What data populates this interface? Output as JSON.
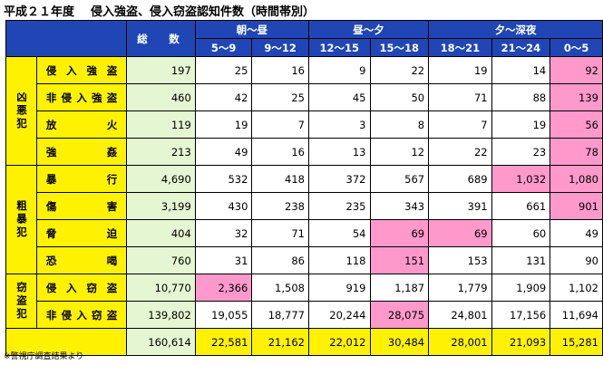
{
  "title": "平成２１年度",
  "subtitle": "侵入強盗、侵入窃盗認知件数（時間帯別）",
  "header": {
    "total_label": "総　数",
    "groups": [
      "朝～昼",
      "昼～夕",
      "夕～深夜"
    ],
    "slots": [
      "5～9",
      "9～12",
      "12～15",
      "15～18",
      "18～21",
      "21～24",
      "0～5"
    ]
  },
  "categories": [
    {
      "name": "凶悪犯",
      "rows": [
        {
          "crime": "侵入強盗",
          "total": "197",
          "values": [
            "25",
            "16",
            "9",
            "22",
            "19",
            "14",
            "92"
          ]
        },
        {
          "crime": "非侵入強盗",
          "total": "460",
          "values": [
            "42",
            "25",
            "45",
            "50",
            "71",
            "88",
            "139"
          ]
        },
        {
          "crime": "放火",
          "total": "119",
          "values": [
            "19",
            "7",
            "3",
            "8",
            "7",
            "19",
            "56"
          ]
        },
        {
          "crime": "強姦",
          "total": "213",
          "values": [
            "49",
            "16",
            "13",
            "12",
            "22",
            "23",
            "78"
          ]
        }
      ]
    },
    {
      "name": "粗暴犯",
      "rows": [
        {
          "crime": "暴行",
          "total": "4,690",
          "values": [
            "532",
            "418",
            "372",
            "567",
            "689",
            "1,032",
            "1,080"
          ]
        },
        {
          "crime": "傷害",
          "total": "3,199",
          "values": [
            "430",
            "238",
            "235",
            "343",
            "391",
            "661",
            "901"
          ]
        },
        {
          "crime": "脅迫",
          "total": "404",
          "values": [
            "32",
            "71",
            "54",
            "69",
            "69",
            "60",
            "49"
          ]
        },
        {
          "crime": "恐喝",
          "total": "760",
          "values": [
            "31",
            "86",
            "118",
            "151",
            "153",
            "131",
            "90"
          ]
        }
      ]
    },
    {
      "name": "窃盗犯",
      "rows": [
        {
          "crime": "侵入窃盗",
          "total": "10,770",
          "values": [
            "2,366",
            "1,508",
            "919",
            "1,187",
            "1,779",
            "1,909",
            "1,102"
          ]
        },
        {
          "crime": "非侵入窃盗",
          "total": "139,802",
          "values": [
            "19,055",
            "18,777",
            "20,244",
            "28,075",
            "24,801",
            "17,156",
            "11,694"
          ]
        }
      ]
    }
  ],
  "totals": {
    "total": "160,614",
    "values": [
      "22,581",
      "21,162",
      "22,012",
      "30,484",
      "28,001",
      "21,093",
      "15,281"
    ]
  },
  "highlight_color": "#ff99cc",
  "header_color": "#1f46b4",
  "label_color": "#fff200",
  "total_color": "#e4f6d2",
  "note": "※警視庁調査結果より"
}
